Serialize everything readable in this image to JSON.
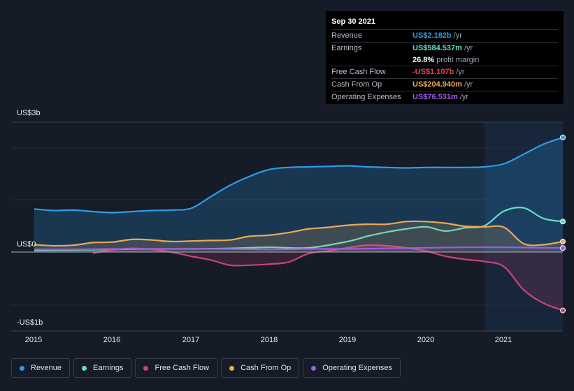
{
  "tooltip": {
    "date": "Sep 30 2021",
    "rows": [
      {
        "label": "Revenue",
        "value": "US$2.182b",
        "suffix": "/yr",
        "color": "#2d9ce6"
      },
      {
        "label": "Earnings",
        "value": "US$584.537m",
        "suffix": "/yr",
        "color": "#5fe0c8"
      },
      {
        "label": "",
        "value": "26.8%",
        "suffix": "profit margin",
        "color": "#ffffff"
      },
      {
        "label": "Free Cash Flow",
        "value": "-US$1.107b",
        "suffix": "/yr",
        "color": "#e8405a"
      },
      {
        "label": "Cash From Op",
        "value": "US$204.940m",
        "suffix": "/yr",
        "color": "#e8a95a"
      },
      {
        "label": "Operating Expenses",
        "value": "US$76.531m",
        "suffix": "/yr",
        "color": "#a05ae8"
      }
    ]
  },
  "chart_data": {
    "type": "line",
    "y_axis_labels": [
      "US$3b",
      "US$0",
      "-US$1b"
    ],
    "x_tick_labels": [
      "2015",
      "2016",
      "2017",
      "2018",
      "2019",
      "2020",
      "2021"
    ],
    "xlim": [
      2015.0,
      2021.75
    ],
    "ylim": [
      -1.5,
      2.5
    ],
    "series": [
      {
        "name": "Revenue",
        "color": "#2d9ce6",
        "fill": true,
        "x": [
          2015.0,
          2015.25,
          2015.5,
          2015.75,
          2016.0,
          2016.25,
          2016.5,
          2016.75,
          2017.0,
          2017.25,
          2017.5,
          2017.75,
          2018.0,
          2018.25,
          2018.5,
          2018.75,
          2019.0,
          2019.25,
          2019.5,
          2019.75,
          2020.0,
          2020.25,
          2020.5,
          2020.75,
          2021.0,
          2021.25,
          2021.5,
          2021.75
        ],
        "values": [
          0.82,
          0.79,
          0.8,
          0.77,
          0.75,
          0.77,
          0.79,
          0.8,
          0.83,
          1.05,
          1.27,
          1.44,
          1.57,
          1.61,
          1.62,
          1.63,
          1.64,
          1.62,
          1.61,
          1.6,
          1.61,
          1.61,
          1.61,
          1.62,
          1.68,
          1.86,
          2.05,
          2.18
        ]
      },
      {
        "name": "Earnings",
        "color": "#5fe0c8",
        "fill": false,
        "x": [
          2015.0,
          2015.5,
          2016.0,
          2016.5,
          2017.0,
          2017.5,
          2018.0,
          2018.5,
          2019.0,
          2019.25,
          2019.5,
          2019.75,
          2020.0,
          2020.25,
          2020.5,
          2020.75,
          2021.0,
          2021.25,
          2021.5,
          2021.75
        ],
        "values": [
          0.03,
          0.04,
          0.05,
          0.06,
          0.06,
          0.07,
          0.09,
          0.08,
          0.2,
          0.3,
          0.38,
          0.44,
          0.48,
          0.4,
          0.46,
          0.5,
          0.78,
          0.84,
          0.64,
          0.58
        ]
      },
      {
        "name": "Free Cash Flow",
        "color": "#c7447a",
        "fill": true,
        "x": [
          2015.75,
          2016.0,
          2016.25,
          2016.5,
          2016.75,
          2017.0,
          2017.25,
          2017.5,
          2017.75,
          2018.0,
          2018.25,
          2018.5,
          2018.75,
          2019.0,
          2019.25,
          2019.5,
          2019.75,
          2020.0,
          2020.25,
          2020.5,
          2020.75,
          2021.0,
          2021.25,
          2021.5,
          2021.75
        ],
        "values": [
          -0.02,
          0.04,
          0.07,
          0.05,
          0.0,
          -0.08,
          -0.15,
          -0.25,
          -0.25,
          -0.23,
          -0.19,
          -0.03,
          0.02,
          0.08,
          0.13,
          0.12,
          0.08,
          0.02,
          -0.08,
          -0.14,
          -0.18,
          -0.28,
          -0.72,
          -0.97,
          -1.11
        ]
      },
      {
        "name": "Cash From Op",
        "color": "#e8a95a",
        "fill": true,
        "x": [
          2015.0,
          2015.25,
          2015.5,
          2015.75,
          2016.0,
          2016.25,
          2016.5,
          2016.75,
          2017.0,
          2017.25,
          2017.5,
          2017.75,
          2018.0,
          2018.25,
          2018.5,
          2018.75,
          2019.0,
          2019.25,
          2019.5,
          2019.75,
          2020.0,
          2020.25,
          2020.5,
          2020.75,
          2021.0,
          2021.25,
          2021.5,
          2021.75
        ],
        "values": [
          0.14,
          0.12,
          0.13,
          0.18,
          0.19,
          0.24,
          0.23,
          0.2,
          0.21,
          0.22,
          0.23,
          0.3,
          0.32,
          0.37,
          0.44,
          0.47,
          0.51,
          0.53,
          0.53,
          0.58,
          0.58,
          0.55,
          0.49,
          0.48,
          0.47,
          0.16,
          0.14,
          0.2
        ]
      },
      {
        "name": "Operating Expenses",
        "color": "#a05ae8",
        "fill": false,
        "x": [
          2015.0,
          2015.5,
          2016.0,
          2016.5,
          2017.0,
          2017.5,
          2018.0,
          2018.5,
          2019.0,
          2019.5,
          2020.0,
          2020.5,
          2021.0,
          2021.5,
          2021.75
        ],
        "values": [
          0.05,
          0.05,
          0.06,
          0.06,
          0.06,
          0.06,
          0.05,
          0.06,
          0.06,
          0.07,
          0.08,
          0.09,
          0.09,
          0.08,
          0.077
        ]
      }
    ]
  }
}
